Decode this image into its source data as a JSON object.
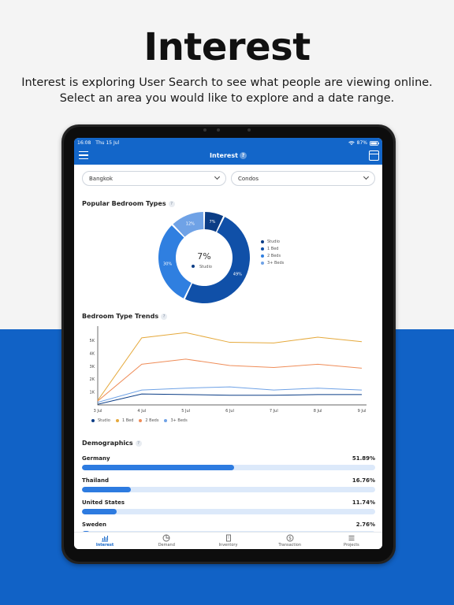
{
  "marketing": {
    "title": "Interest",
    "subtitle_line1": "Interest is exploring User Search to see what people are viewing online.",
    "subtitle_line2": "Select an area you would like to explore and a date range."
  },
  "colors": {
    "brand_blue": "#1366c9",
    "studio": "#0b3d86",
    "one_bed": "#e5a93c",
    "two_beds": "#ef8d59",
    "three_plus": "#6fa2e6"
  },
  "status_bar": {
    "time": "16:08",
    "date": "Thu 15 Jul",
    "battery": "87%"
  },
  "nav": {
    "title": "Interest",
    "help": "?",
    "menu_icon": "hamburger-icon",
    "calendar_icon": "calendar-icon"
  },
  "filters": {
    "location": "Bangkok",
    "property_type": "Condos"
  },
  "popular_bedroom": {
    "title": "Popular Bedroom Types",
    "help": "?",
    "center_value": "7%",
    "center_label": "Studio",
    "slices": [
      {
        "name": "Studio",
        "pct": 7,
        "label": "7%"
      },
      {
        "name": "1 Bed",
        "pct": 49,
        "label": "49%"
      },
      {
        "name": "2 Beds",
        "pct": 30,
        "label": "30%"
      },
      {
        "name": "3+ Beds",
        "pct": 12,
        "label": "12%"
      }
    ],
    "legend": [
      "Studio",
      "1 Bed",
      "2 Beds",
      "3+ Beds"
    ]
  },
  "bedroom_trends": {
    "title": "Bedroom Type Trends",
    "help": "?",
    "legend": [
      "Studio",
      "1 Bed",
      "2 Beds",
      "3+ Beds"
    ]
  },
  "chart_data": {
    "type": "line",
    "x": [
      "3 Jul",
      "4 Jul",
      "5 Jul",
      "6 Jul",
      "7 Jul",
      "8 Jul",
      "9 Jul"
    ],
    "y_ticks": [
      "1K",
      "2K",
      "3K",
      "4K",
      "5K"
    ],
    "ylim": [
      0,
      5800
    ],
    "series": [
      {
        "name": "Studio",
        "values": [
          50,
          850,
          800,
          750,
          750,
          800,
          800
        ]
      },
      {
        "name": "1 Bed",
        "values": [
          350,
          5200,
          5600,
          4850,
          4800,
          5250,
          4900
        ]
      },
      {
        "name": "2 Beds",
        "values": [
          300,
          3150,
          3550,
          3050,
          2900,
          3150,
          2850
        ]
      },
      {
        "name": "3+ Beds",
        "values": [
          200,
          1150,
          1300,
          1400,
          1150,
          1300,
          1150
        ]
      }
    ],
    "grid": false,
    "legend_position": "bottom-left"
  },
  "demographics": {
    "title": "Demographics",
    "help": "?",
    "rows": [
      {
        "country": "Germany",
        "pct_label": "51.89%",
        "pct": 51.89
      },
      {
        "country": "Thailand",
        "pct_label": "16.76%",
        "pct": 16.76
      },
      {
        "country": "United States",
        "pct_label": "11.74%",
        "pct": 11.74
      },
      {
        "country": "Sweden",
        "pct_label": "2.76%",
        "pct": 2.76
      }
    ]
  },
  "tabs": [
    {
      "label": "Interest",
      "icon": "bar-chart-icon",
      "active": true
    },
    {
      "label": "Demand",
      "icon": "pie-chart-icon",
      "active": false
    },
    {
      "label": "Inventory",
      "icon": "building-icon",
      "active": false
    },
    {
      "label": "Transaction",
      "icon": "dollar-icon",
      "active": false
    },
    {
      "label": "Projects",
      "icon": "list-icon",
      "active": false
    }
  ]
}
